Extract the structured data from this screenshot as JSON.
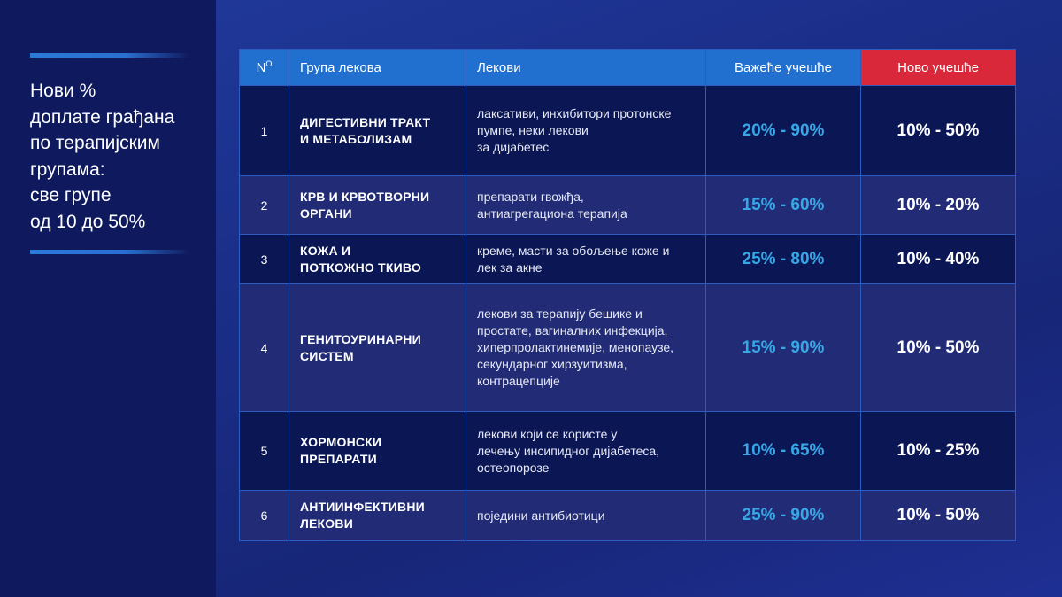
{
  "sidebar": {
    "title_lines": [
      "Нови %",
      "доплате грађана",
      "по терапијским",
      "групама:",
      "све групе",
      "од 10 до 50%"
    ]
  },
  "table": {
    "headers": {
      "num": "N",
      "num_sup": "O",
      "group": "Група лекова",
      "drugs": "Лекови",
      "current": "Важеће учешће",
      "new": "Ново учешће"
    },
    "rows": [
      {
        "num": "1",
        "group": [
          "ДИГЕСТИВНИ ТРАКТ",
          "И МЕТАБОЛИЗАМ"
        ],
        "drugs": [
          "лаксативи, инхибитори протонске",
          "пумпе, неки лекови",
          "за дијабетес"
        ],
        "current": "20% - 90%",
        "new": "10% - 50%"
      },
      {
        "num": "2",
        "group": [
          "КРВ И КРВОТВОРНИ",
          "ОРГАНИ"
        ],
        "drugs": [
          "препарати гвожђа,",
          "антиагрегациона терапија"
        ],
        "current": "15% - 60%",
        "new": "10% - 20%"
      },
      {
        "num": "3",
        "group": [
          "КОЖА И",
          "ПОТКОЖНО ТКИВО"
        ],
        "drugs": [
          "креме, масти за обољење коже и",
          "лек за акне"
        ],
        "current": "25% - 80%",
        "new": "10% - 40%"
      },
      {
        "num": "4",
        "group": [
          "ГЕНИТОУРИНАРНИ",
          "СИСТЕМ"
        ],
        "drugs": [
          "лекови за терапију бешике и",
          "простате, вагиналних инфекција,",
          "хиперпролактинемије, менопаузе,",
          "секундарног хирзуитизма,",
          "контрацепције"
        ],
        "current": "15% - 90%",
        "new": "10% - 50%"
      },
      {
        "num": "5",
        "group": [
          "ХОРМОНСКИ",
          "ПРЕПАРАТИ"
        ],
        "drugs": [
          "лекови који се користе у",
          "лечењу инсипидног дијабетеса,",
          "остеопорозе"
        ],
        "current": "10% - 65%",
        "new": "10% - 25%"
      },
      {
        "num": "6",
        "group": [
          "АНТИИНФЕКТИВНИ",
          "ЛЕКОВИ"
        ],
        "drugs": [
          "поједини антибиотици"
        ],
        "current": "25% - 90%",
        "new": "10% - 50%"
      }
    ]
  },
  "colors": {
    "header_blue": "#2170cf",
    "header_red": "#d8283a",
    "current_value": "#38a7e6",
    "row_dark": "#0b1655",
    "row_light": "#222c76"
  }
}
